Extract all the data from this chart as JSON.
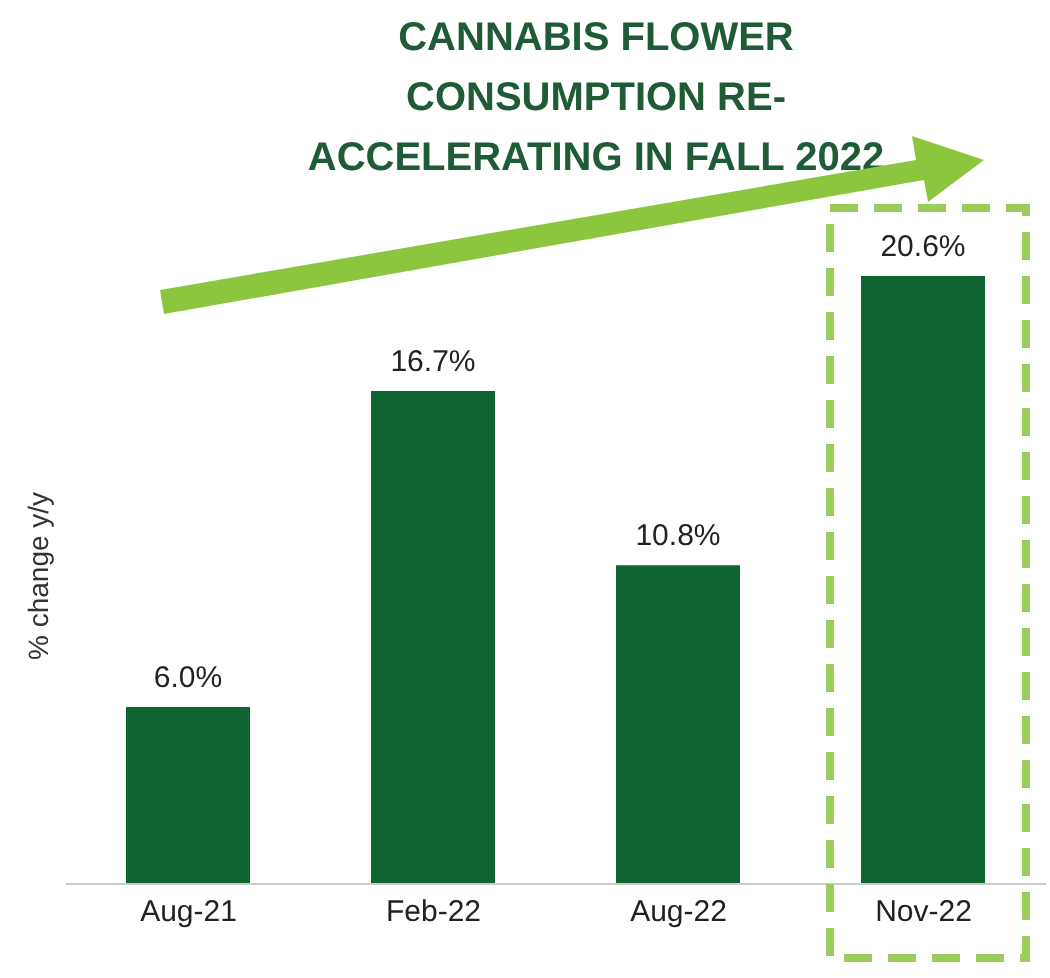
{
  "chart_data": {
    "type": "bar",
    "title": "CANNABIS FLOWER CONSUMPTION RE-ACCELERATING IN FALL 2022",
    "ylabel": "% change y/y",
    "categories": [
      "Aug-21",
      "Feb-22",
      "Aug-22",
      "Nov-22"
    ],
    "values": [
      6.0,
      16.7,
      10.8,
      20.6
    ],
    "value_labels": [
      "6.0%",
      "16.7%",
      "10.8%",
      "20.6%"
    ],
    "color": "#0e6531",
    "grid": false,
    "legend": false
  }
}
